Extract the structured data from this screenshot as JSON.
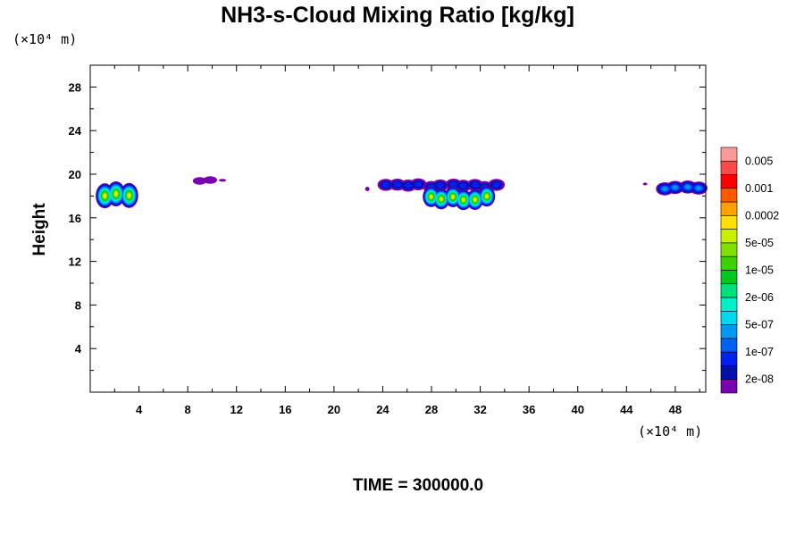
{
  "chart_data": {
    "type": "heatmap",
    "title": "NH3-s-Cloud Mixing Ratio [kg/kg]",
    "ylabel": "Height",
    "xlabel": "",
    "x_unit": "(×10⁴ m)",
    "y_unit": "(×10⁴ m)",
    "xlim": [
      0,
      50.5
    ],
    "ylim": [
      0,
      30
    ],
    "x_ticks": [
      4,
      8,
      12,
      16,
      20,
      24,
      28,
      32,
      36,
      40,
      44,
      48
    ],
    "y_ticks": [
      4,
      8,
      12,
      16,
      20,
      24,
      28
    ],
    "grid": false,
    "footer": "TIME = 300000.0",
    "colorbar": {
      "labels": [
        "0.005",
        "0.001",
        "0.0002",
        "5e-05",
        "1e-05",
        "2e-06",
        "5e-07",
        "1e-07",
        "2e-08"
      ],
      "colors": [
        "#ff9a9a",
        "#ff4a4a",
        "#ff0000",
        "#ff5a00",
        "#ffa000",
        "#ffe000",
        "#c8f000",
        "#80e000",
        "#40d000",
        "#00c820",
        "#00e07a",
        "#00f0c8",
        "#00d8f0",
        "#0098f0",
        "#0060f0",
        "#0020f0",
        "#0010b0",
        "#7800b0"
      ],
      "placement": "right"
    },
    "clouds": [
      {
        "x": [
          0.7,
          3.7
        ],
        "y": [
          16.9,
          19.2
        ],
        "peak": "0.0002"
      },
      {
        "x": [
          8.7,
          10.2
        ],
        "y": [
          19.1,
          19.8
        ],
        "peak": "2e-08"
      },
      {
        "x": [
          10.7,
          11.1
        ],
        "y": [
          19.4,
          19.5
        ],
        "peak": "2e-08"
      },
      {
        "x": [
          22.6,
          22.8
        ],
        "y": [
          18.4,
          18.8
        ],
        "peak": "2e-08"
      },
      {
        "x": [
          23.8,
          33.8
        ],
        "y": [
          18.4,
          19.5
        ],
        "peak": "1e-07"
      },
      {
        "x": [
          27.5,
          33.0
        ],
        "y": [
          16.9,
          18.8
        ],
        "peak": "0.0002"
      },
      {
        "x": [
          45.4,
          45.6
        ],
        "y": [
          19.0,
          19.2
        ],
        "peak": "2e-08"
      },
      {
        "x": [
          46.6,
          50.5
        ],
        "y": [
          18.1,
          19.3
        ],
        "peak": "5e-07"
      }
    ]
  }
}
